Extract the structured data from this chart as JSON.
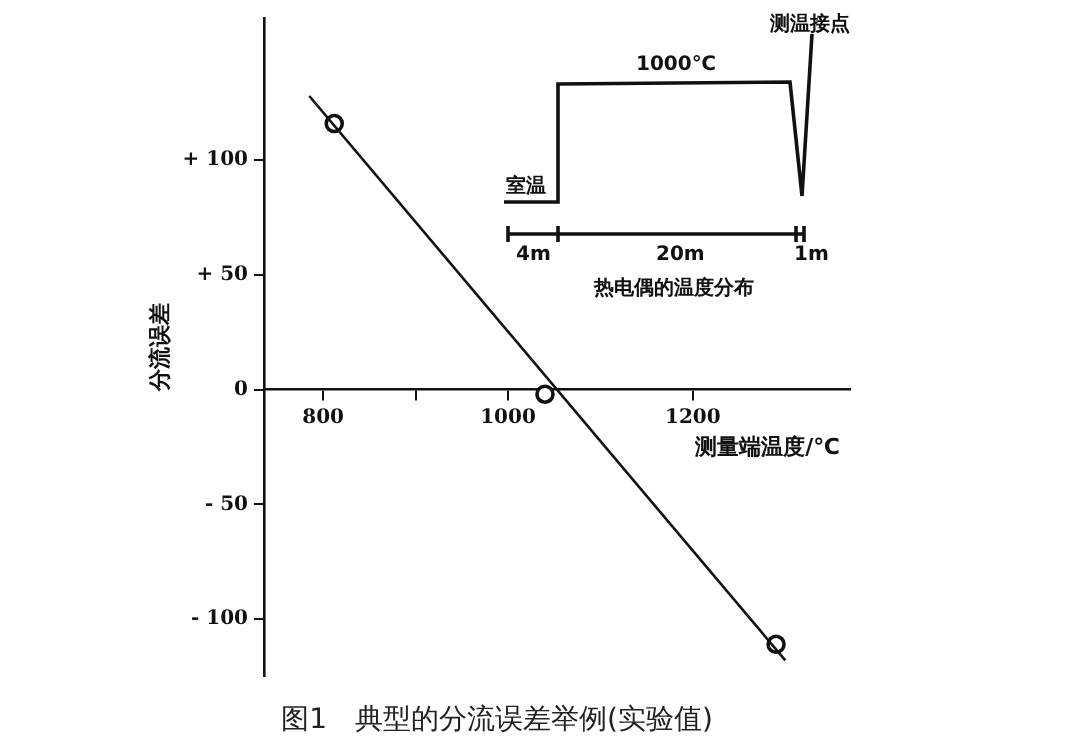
{
  "chart_data": {
    "type": "scatter",
    "title": "图1　典型的分流误差举例(实验值)",
    "xlabel": "测量端温度/℃",
    "ylabel": "分流误差",
    "xlim": [
      736,
      1370
    ],
    "ylim": [
      -125,
      162
    ],
    "xticks": [
      800,
      {
        "value": 900,
        "label": null
      },
      1000,
      1200
    ],
    "yticks": [
      {
        "value": -100,
        "label": "- 100"
      },
      {
        "value": -50,
        "label": "- 50"
      },
      0,
      {
        "value": 50,
        "label": "+ 50"
      },
      {
        "value": 100,
        "label": "+ 100"
      }
    ],
    "marker": "circle",
    "series": [
      {
        "type": "line",
        "color": "#111111",
        "x": [
          785,
          1300
        ],
        "values": [
          128,
          -118
        ],
        "marker": "none"
      },
      {
        "type": "scatter",
        "color": "#111111",
        "x": [
          812,
          1040,
          1290
        ],
        "values": [
          116,
          -2,
          -111
        ]
      }
    ],
    "annotations": [
      "室温",
      "1000℃",
      "测温接点",
      "4m",
      "20m",
      "1m",
      "热电偶的温度分布"
    ]
  }
}
